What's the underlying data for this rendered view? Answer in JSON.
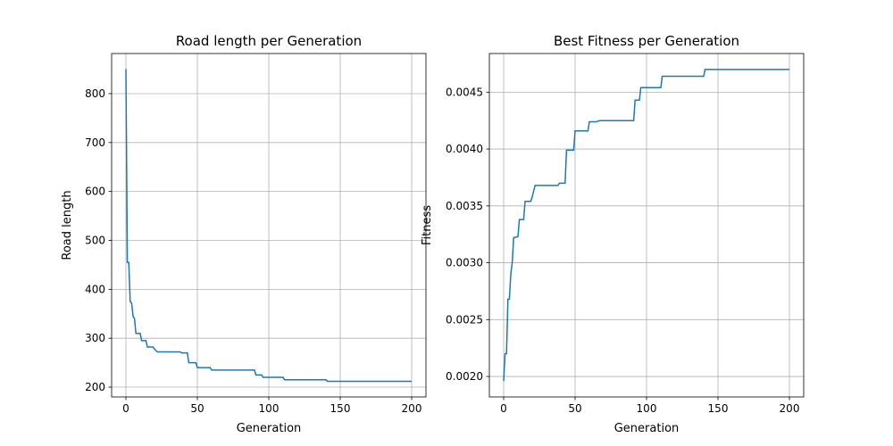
{
  "chart_data": [
    {
      "type": "line",
      "title": "Road length per Generation",
      "xlabel": "Generation",
      "ylabel": "Road length",
      "color": "#1f77b4",
      "grid": true,
      "x": [
        0,
        1,
        2,
        3,
        4,
        5,
        6,
        7,
        10,
        11,
        14,
        15,
        19,
        20,
        22,
        38,
        39,
        43,
        44,
        49,
        50,
        59,
        60,
        90,
        91,
        95,
        96,
        110,
        111,
        140,
        141,
        200
      ],
      "values": [
        850,
        455,
        455,
        375,
        372,
        345,
        340,
        310,
        310,
        295,
        295,
        282,
        282,
        278,
        272,
        272,
        270,
        270,
        250,
        250,
        240,
        240,
        235,
        235,
        225,
        225,
        220,
        220,
        215,
        215,
        212,
        212
      ],
      "xlim": [
        -10,
        210
      ],
      "xticks": [
        0,
        50,
        100,
        150,
        200
      ],
      "ylim": [
        180,
        882
      ],
      "yticks": [
        200,
        300,
        400,
        500,
        600,
        700,
        800
      ]
    },
    {
      "type": "line",
      "title": "Best Fitness per Generation",
      "xlabel": "Generation",
      "ylabel": "Fitness",
      "color": "#1f77b4",
      "grid": true,
      "x": [
        0,
        1,
        2,
        3,
        4,
        5,
        6,
        7,
        10,
        11,
        14,
        15,
        19,
        20,
        22,
        38,
        39,
        43,
        44,
        49,
        50,
        59,
        60,
        65,
        67,
        91,
        92,
        95,
        96,
        110,
        111,
        140,
        141,
        200
      ],
      "values": [
        0.00196,
        0.0022,
        0.0022,
        0.00268,
        0.00268,
        0.0029,
        0.003,
        0.00322,
        0.00323,
        0.00338,
        0.00338,
        0.00354,
        0.00354,
        0.00358,
        0.00368,
        0.00368,
        0.0037,
        0.0037,
        0.00399,
        0.00399,
        0.00416,
        0.00416,
        0.00424,
        0.00424,
        0.00425,
        0.00425,
        0.00443,
        0.00443,
        0.00454,
        0.00454,
        0.00464,
        0.00464,
        0.0047,
        0.0047
      ],
      "xlim": [
        -10,
        210
      ],
      "xticks": [
        0,
        50,
        100,
        150,
        200
      ],
      "ylim": [
        0.00182,
        0.00484
      ],
      "yticks": [
        {
          "value": 0.002,
          "label": "0.0020"
        },
        {
          "value": 0.0025,
          "label": "0.0025"
        },
        {
          "value": 0.003,
          "label": "0.0030"
        },
        {
          "value": 0.0035,
          "label": "0.0035"
        },
        {
          "value": 0.004,
          "label": "0.0040"
        },
        {
          "value": 0.0045,
          "label": "0.0045"
        }
      ]
    }
  ]
}
